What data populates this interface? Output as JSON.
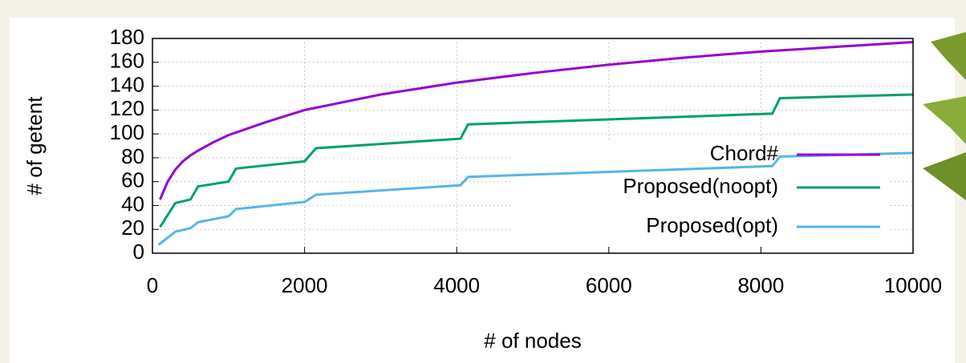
{
  "chart_data": {
    "type": "line",
    "x_label": "# of nodes",
    "y_label": "# of getent",
    "xlim": [
      0,
      10000
    ],
    "xticks": [
      0,
      2000,
      4000,
      6000,
      8000,
      10000
    ],
    "ylim": [
      0,
      180
    ],
    "yticks": [
      0,
      20,
      40,
      60,
      80,
      100,
      120,
      140,
      160,
      180
    ],
    "grid": true,
    "legend": "right",
    "series": [
      {
        "name": "Chord#",
        "color": "#9400d3",
        "x": [
          100,
          200,
          300,
          400,
          500,
          600,
          800,
          1000,
          1500,
          2000,
          3000,
          4000,
          5000,
          6000,
          7000,
          8000,
          9000,
          10000
        ],
        "values": [
          45,
          60,
          70,
          77,
          82,
          86,
          93,
          99,
          110,
          120,
          133,
          143,
          151,
          158,
          164,
          169,
          173,
          177
        ]
      },
      {
        "name": "Proposed(noopt)",
        "color": "#009e73",
        "x": [
          100,
          300,
          500,
          600,
          1000,
          1100,
          2000,
          2150,
          4050,
          4150,
          8150,
          8250,
          10000
        ],
        "values": [
          22,
          42,
          45,
          56,
          60,
          71,
          77,
          88,
          96,
          108,
          117,
          130,
          133
        ]
      },
      {
        "name": "Proposed(opt)",
        "color": "#56b4e9",
        "x": [
          80,
          300,
          500,
          600,
          1000,
          1100,
          2000,
          2150,
          4050,
          4150,
          8150,
          8250,
          10000
        ],
        "values": [
          7,
          18,
          21,
          26,
          31,
          37,
          43,
          49,
          57,
          64,
          73,
          81,
          84
        ]
      }
    ]
  }
}
